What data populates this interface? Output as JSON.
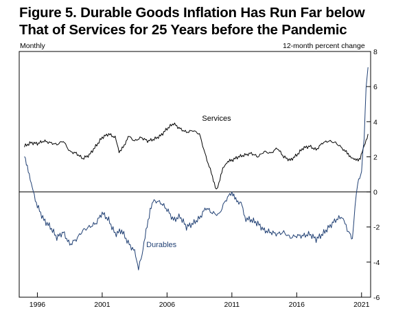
{
  "title_line1": "Figure 5. Durable Goods Inflation Has Run Far below",
  "title_line2": "That of Services for 25 Years before the Pandemic",
  "left_note": "Monthly",
  "right_note": "12-month percent change",
  "chart_data": {
    "type": "line",
    "frequency": "Monthly",
    "ylabel": "12-month percent change",
    "xlim": [
      1994.6,
      2021.7
    ],
    "ylim": [
      -6,
      8
    ],
    "x_ticks": [
      1996,
      2001,
      2006,
      2011,
      2016,
      2021
    ],
    "x_tick_labels": [
      "1996",
      "2001",
      "2006",
      "2011",
      "2016",
      "2021"
    ],
    "y_ticks": [
      -6,
      -4,
      -2,
      0,
      2,
      4,
      6,
      8
    ],
    "y_tick_labels": [
      "-6",
      "-4",
      "-2",
      "0",
      "2",
      "4",
      "6",
      "8"
    ],
    "zero_line": true,
    "grid": false,
    "colors": {
      "Services": "#000000",
      "Durables": "#1f3f73"
    },
    "series": [
      {
        "name": "Services",
        "points": [
          [
            1995.0,
            2.6
          ],
          [
            1995.5,
            2.8
          ],
          [
            1996.0,
            2.75
          ],
          [
            1996.5,
            2.9
          ],
          [
            1997.0,
            2.8
          ],
          [
            1997.5,
            2.7
          ],
          [
            1998.0,
            2.9
          ],
          [
            1998.5,
            2.3
          ],
          [
            1999.0,
            2.2
          ],
          [
            1999.5,
            1.9
          ],
          [
            2000.0,
            2.1
          ],
          [
            2000.5,
            2.6
          ],
          [
            2001.0,
            3.1
          ],
          [
            2001.5,
            3.3
          ],
          [
            2002.0,
            3.1
          ],
          [
            2002.3,
            2.3
          ],
          [
            2002.7,
            2.6
          ],
          [
            2003.0,
            3.2
          ],
          [
            2003.5,
            2.9
          ],
          [
            2004.0,
            3.1
          ],
          [
            2004.5,
            2.9
          ],
          [
            2005.0,
            3.0
          ],
          [
            2005.5,
            3.2
          ],
          [
            2006.0,
            3.6
          ],
          [
            2006.5,
            3.9
          ],
          [
            2007.0,
            3.6
          ],
          [
            2007.5,
            3.4
          ],
          [
            2008.0,
            3.5
          ],
          [
            2008.5,
            3.3
          ],
          [
            2009.0,
            2.0
          ],
          [
            2009.5,
            0.9
          ],
          [
            2009.8,
            0.1
          ],
          [
            2010.0,
            0.5
          ],
          [
            2010.3,
            1.3
          ],
          [
            2010.6,
            1.7
          ],
          [
            2011.0,
            1.8
          ],
          [
            2011.5,
            2.0
          ],
          [
            2012.0,
            2.1
          ],
          [
            2012.5,
            2.2
          ],
          [
            2013.0,
            2.0
          ],
          [
            2013.5,
            2.3
          ],
          [
            2014.0,
            2.2
          ],
          [
            2014.5,
            2.5
          ],
          [
            2015.0,
            2.0
          ],
          [
            2015.5,
            1.8
          ],
          [
            2016.0,
            2.1
          ],
          [
            2016.5,
            2.5
          ],
          [
            2017.0,
            2.6
          ],
          [
            2017.5,
            2.4
          ],
          [
            2018.0,
            2.8
          ],
          [
            2018.5,
            2.9
          ],
          [
            2019.0,
            2.8
          ],
          [
            2019.5,
            2.5
          ],
          [
            2019.9,
            2.2
          ],
          [
            2020.2,
            2.0
          ],
          [
            2020.5,
            1.8
          ],
          [
            2020.9,
            1.9
          ],
          [
            2021.2,
            2.6
          ],
          [
            2021.5,
            3.3
          ]
        ]
      },
      {
        "name": "Durables",
        "points": [
          [
            1995.0,
            2.0
          ],
          [
            1995.3,
            1.3
          ],
          [
            1995.6,
            0.2
          ],
          [
            1996.0,
            -0.8
          ],
          [
            1996.5,
            -1.6
          ],
          [
            1997.0,
            -2.0
          ],
          [
            1997.5,
            -2.6
          ],
          [
            1998.0,
            -2.3
          ],
          [
            1998.5,
            -3.0
          ],
          [
            1999.0,
            -2.7
          ],
          [
            1999.5,
            -2.2
          ],
          [
            2000.0,
            -2.0
          ],
          [
            2000.5,
            -1.8
          ],
          [
            2001.0,
            -1.2
          ],
          [
            2001.5,
            -1.6
          ],
          [
            2002.0,
            -2.4
          ],
          [
            2002.5,
            -2.2
          ],
          [
            2003.0,
            -2.9
          ],
          [
            2003.5,
            -3.4
          ],
          [
            2003.8,
            -4.3
          ],
          [
            2004.0,
            -3.8
          ],
          [
            2004.3,
            -2.6
          ],
          [
            2004.7,
            -1.0
          ],
          [
            2005.0,
            -0.5
          ],
          [
            2005.5,
            -0.6
          ],
          [
            2006.0,
            -1.0
          ],
          [
            2006.5,
            -1.6
          ],
          [
            2007.0,
            -1.4
          ],
          [
            2007.5,
            -2.0
          ],
          [
            2008.0,
            -1.8
          ],
          [
            2008.5,
            -1.5
          ],
          [
            2009.0,
            -0.9
          ],
          [
            2009.5,
            -1.2
          ],
          [
            2010.0,
            -1.3
          ],
          [
            2010.5,
            -0.5
          ],
          [
            2011.0,
            0.0
          ],
          [
            2011.3,
            -0.5
          ],
          [
            2011.7,
            -0.6
          ],
          [
            2012.0,
            -1.5
          ],
          [
            2012.5,
            -1.6
          ],
          [
            2013.0,
            -1.8
          ],
          [
            2013.5,
            -2.2
          ],
          [
            2014.0,
            -2.3
          ],
          [
            2014.5,
            -2.4
          ],
          [
            2015.0,
            -2.3
          ],
          [
            2015.5,
            -2.6
          ],
          [
            2016.0,
            -2.5
          ],
          [
            2016.5,
            -2.5
          ],
          [
            2017.0,
            -2.4
          ],
          [
            2017.5,
            -2.7
          ],
          [
            2018.0,
            -2.4
          ],
          [
            2018.5,
            -2.0
          ],
          [
            2019.0,
            -1.6
          ],
          [
            2019.5,
            -1.4
          ],
          [
            2019.8,
            -2.0
          ],
          [
            2020.0,
            -2.3
          ],
          [
            2020.3,
            -2.7
          ],
          [
            2020.5,
            -0.8
          ],
          [
            2020.7,
            0.5
          ],
          [
            2021.0,
            1.2
          ],
          [
            2021.2,
            3.2
          ],
          [
            2021.35,
            6.0
          ],
          [
            2021.5,
            7.1
          ]
        ]
      }
    ]
  }
}
